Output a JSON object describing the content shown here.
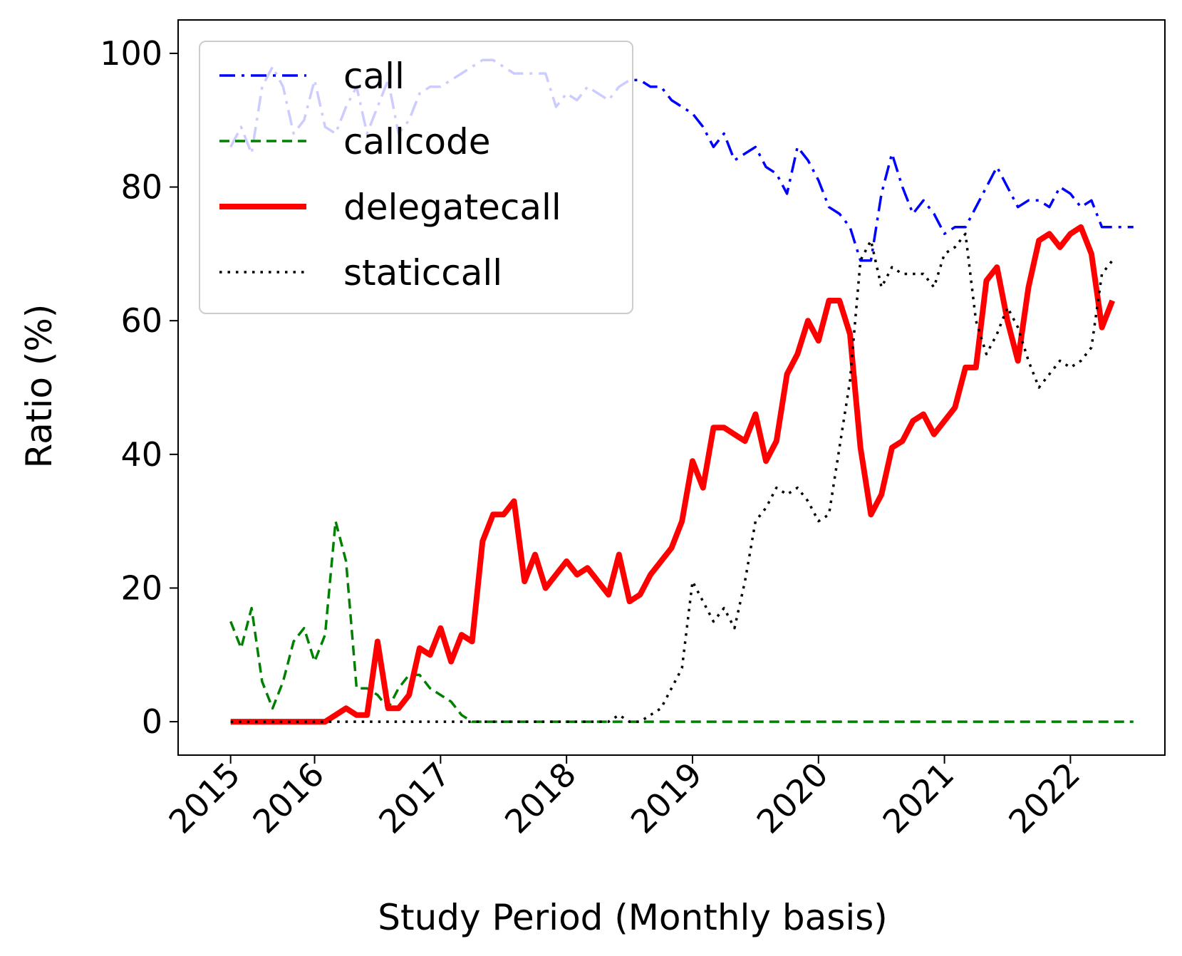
{
  "chart_data": {
    "type": "line",
    "title": "",
    "xlabel": "Study Period (Monthly basis)",
    "ylabel": "Ratio (%)",
    "xlim": [
      "2014-12",
      "2022-10"
    ],
    "ylim": [
      -5,
      105
    ],
    "xticks": [
      {
        "date": "2015-05",
        "label": "2015"
      },
      {
        "date": "2016-01",
        "label": "2016"
      },
      {
        "date": "2017-01",
        "label": "2017"
      },
      {
        "date": "2018-01",
        "label": "2018"
      },
      {
        "date": "2019-01",
        "label": "2019"
      },
      {
        "date": "2020-01",
        "label": "2020"
      },
      {
        "date": "2021-01",
        "label": "2021"
      },
      {
        "date": "2022-01",
        "label": "2022"
      }
    ],
    "yticks": [
      0,
      20,
      40,
      60,
      80,
      100
    ],
    "grid": false,
    "legend_position": "top-left",
    "series": [
      {
        "name": "call",
        "color": "#0000ff",
        "style": "dashdot",
        "points": [
          [
            "2015-05",
            86
          ],
          [
            "2015-06",
            89
          ],
          [
            "2015-07",
            85
          ],
          [
            "2015-08",
            95
          ],
          [
            "2015-09",
            98
          ],
          [
            "2015-10",
            95
          ],
          [
            "2015-11",
            88
          ],
          [
            "2015-12",
            90
          ],
          [
            "2016-01",
            96
          ],
          [
            "2016-02",
            89
          ],
          [
            "2016-03",
            88
          ],
          [
            "2016-04",
            92
          ],
          [
            "2016-05",
            95
          ],
          [
            "2016-06",
            88
          ],
          [
            "2016-07",
            92
          ],
          [
            "2016-08",
            96
          ],
          [
            "2016-09",
            88
          ],
          [
            "2016-10",
            90
          ],
          [
            "2016-11",
            94
          ],
          [
            "2016-12",
            95
          ],
          [
            "2017-01",
            95
          ],
          [
            "2017-02",
            96
          ],
          [
            "2017-03",
            97
          ],
          [
            "2017-04",
            98
          ],
          [
            "2017-05",
            99
          ],
          [
            "2017-06",
            99
          ],
          [
            "2017-07",
            98
          ],
          [
            "2017-08",
            97
          ],
          [
            "2017-09",
            97
          ],
          [
            "2017-10",
            97
          ],
          [
            "2017-11",
            97
          ],
          [
            "2017-12",
            92
          ],
          [
            "2018-01",
            94
          ],
          [
            "2018-02",
            93
          ],
          [
            "2018-03",
            95
          ],
          [
            "2018-04",
            94
          ],
          [
            "2018-05",
            93
          ],
          [
            "2018-06",
            95
          ],
          [
            "2018-07",
            96
          ],
          [
            "2018-08",
            96
          ],
          [
            "2018-09",
            95
          ],
          [
            "2018-10",
            95
          ],
          [
            "2018-11",
            93
          ],
          [
            "2018-12",
            92
          ],
          [
            "2019-01",
            91
          ],
          [
            "2019-02",
            89
          ],
          [
            "2019-03",
            86
          ],
          [
            "2019-04",
            88
          ],
          [
            "2019-05",
            84
          ],
          [
            "2019-06",
            85
          ],
          [
            "2019-07",
            86
          ],
          [
            "2019-08",
            83
          ],
          [
            "2019-09",
            82
          ],
          [
            "2019-10",
            79
          ],
          [
            "2019-11",
            86
          ],
          [
            "2019-12",
            84
          ],
          [
            "2020-01",
            81
          ],
          [
            "2020-02",
            77
          ],
          [
            "2020-03",
            76
          ],
          [
            "2020-04",
            74
          ],
          [
            "2020-05",
            69
          ],
          [
            "2020-06",
            69
          ],
          [
            "2020-07",
            79
          ],
          [
            "2020-08",
            85
          ],
          [
            "2020-09",
            80
          ],
          [
            "2020-10",
            76
          ],
          [
            "2020-11",
            78
          ],
          [
            "2020-12",
            76
          ],
          [
            "2021-01",
            73
          ],
          [
            "2021-02",
            74
          ],
          [
            "2021-03",
            74
          ],
          [
            "2021-04",
            77
          ],
          [
            "2021-05",
            80
          ],
          [
            "2021-06",
            83
          ],
          [
            "2021-07",
            80
          ],
          [
            "2021-08",
            77
          ],
          [
            "2021-09",
            78
          ],
          [
            "2021-10",
            78
          ],
          [
            "2021-11",
            77
          ],
          [
            "2021-12",
            80
          ],
          [
            "2022-01",
            79
          ],
          [
            "2022-02",
            77
          ],
          [
            "2022-03",
            78
          ],
          [
            "2022-04",
            74
          ],
          [
            "2022-05",
            74
          ],
          [
            "2022-06",
            74
          ],
          [
            "2022-07",
            74
          ]
        ]
      },
      {
        "name": "callcode",
        "color": "#008000",
        "style": "dashed",
        "points": [
          [
            "2015-05",
            15
          ],
          [
            "2015-06",
            11
          ],
          [
            "2015-07",
            17
          ],
          [
            "2015-08",
            6
          ],
          [
            "2015-09",
            2
          ],
          [
            "2015-10",
            6
          ],
          [
            "2015-11",
            12
          ],
          [
            "2015-12",
            14
          ],
          [
            "2016-01",
            9
          ],
          [
            "2016-02",
            13
          ],
          [
            "2016-03",
            30
          ],
          [
            "2016-04",
            24
          ],
          [
            "2016-05",
            5
          ],
          [
            "2016-06",
            5
          ],
          [
            "2016-07",
            4
          ],
          [
            "2016-08",
            2
          ],
          [
            "2016-09",
            5
          ],
          [
            "2016-10",
            7
          ],
          [
            "2016-11",
            7
          ],
          [
            "2016-12",
            5
          ],
          [
            "2017-01",
            4
          ],
          [
            "2017-02",
            3
          ],
          [
            "2017-03",
            1
          ],
          [
            "2017-04",
            0
          ],
          [
            "2017-05",
            0
          ],
          [
            "2017-06",
            0
          ],
          [
            "2017-07",
            0
          ],
          [
            "2017-08",
            0
          ],
          [
            "2017-09",
            0
          ],
          [
            "2018-01",
            0
          ],
          [
            "2019-01",
            0
          ],
          [
            "2020-01",
            0
          ],
          [
            "2021-01",
            0
          ],
          [
            "2022-01",
            0
          ],
          [
            "2022-07",
            0
          ]
        ]
      },
      {
        "name": "delegatecall",
        "color": "#ff0000",
        "style": "solid",
        "points": [
          [
            "2015-05",
            0
          ],
          [
            "2015-06",
            0
          ],
          [
            "2015-07",
            0
          ],
          [
            "2015-08",
            0
          ],
          [
            "2015-09",
            0
          ],
          [
            "2015-10",
            0
          ],
          [
            "2015-11",
            0
          ],
          [
            "2015-12",
            0
          ],
          [
            "2016-01",
            0
          ],
          [
            "2016-02",
            0
          ],
          [
            "2016-03",
            1
          ],
          [
            "2016-04",
            2
          ],
          [
            "2016-05",
            1
          ],
          [
            "2016-06",
            1
          ],
          [
            "2016-07",
            12
          ],
          [
            "2016-08",
            2
          ],
          [
            "2016-09",
            2
          ],
          [
            "2016-10",
            4
          ],
          [
            "2016-11",
            11
          ],
          [
            "2016-12",
            10
          ],
          [
            "2017-01",
            14
          ],
          [
            "2017-02",
            9
          ],
          [
            "2017-03",
            13
          ],
          [
            "2017-04",
            12
          ],
          [
            "2017-05",
            27
          ],
          [
            "2017-06",
            31
          ],
          [
            "2017-07",
            31
          ],
          [
            "2017-08",
            33
          ],
          [
            "2017-09",
            21
          ],
          [
            "2017-10",
            25
          ],
          [
            "2017-11",
            20
          ],
          [
            "2017-12",
            22
          ],
          [
            "2018-01",
            24
          ],
          [
            "2018-02",
            22
          ],
          [
            "2018-03",
            23
          ],
          [
            "2018-04",
            21
          ],
          [
            "2018-05",
            19
          ],
          [
            "2018-06",
            25
          ],
          [
            "2018-07",
            18
          ],
          [
            "2018-08",
            19
          ],
          [
            "2018-09",
            22
          ],
          [
            "2018-10",
            24
          ],
          [
            "2018-11",
            26
          ],
          [
            "2018-12",
            30
          ],
          [
            "2019-01",
            39
          ],
          [
            "2019-02",
            35
          ],
          [
            "2019-03",
            44
          ],
          [
            "2019-04",
            44
          ],
          [
            "2019-05",
            43
          ],
          [
            "2019-06",
            42
          ],
          [
            "2019-07",
            46
          ],
          [
            "2019-08",
            39
          ],
          [
            "2019-09",
            42
          ],
          [
            "2019-10",
            52
          ],
          [
            "2019-11",
            55
          ],
          [
            "2019-12",
            60
          ],
          [
            "2020-01",
            57
          ],
          [
            "2020-02",
            63
          ],
          [
            "2020-03",
            63
          ],
          [
            "2020-04",
            58
          ],
          [
            "2020-05",
            41
          ],
          [
            "2020-06",
            31
          ],
          [
            "2020-07",
            34
          ],
          [
            "2020-08",
            41
          ],
          [
            "2020-09",
            42
          ],
          [
            "2020-10",
            45
          ],
          [
            "2020-11",
            46
          ],
          [
            "2020-12",
            43
          ],
          [
            "2021-01",
            45
          ],
          [
            "2021-02",
            47
          ],
          [
            "2021-03",
            53
          ],
          [
            "2021-04",
            53
          ],
          [
            "2021-05",
            66
          ],
          [
            "2021-06",
            68
          ],
          [
            "2021-07",
            60
          ],
          [
            "2021-08",
            54
          ],
          [
            "2021-09",
            65
          ],
          [
            "2021-10",
            72
          ],
          [
            "2021-11",
            73
          ],
          [
            "2021-12",
            71
          ],
          [
            "2022-01",
            73
          ],
          [
            "2022-02",
            74
          ],
          [
            "2022-03",
            70
          ],
          [
            "2022-04",
            59
          ],
          [
            "2022-05",
            63
          ]
        ]
      },
      {
        "name": "staticcall",
        "color": "#000000",
        "style": "dotted",
        "points": [
          [
            "2015-05",
            0
          ],
          [
            "2016-01",
            0
          ],
          [
            "2017-01",
            0
          ],
          [
            "2018-01",
            0
          ],
          [
            "2018-05",
            0
          ],
          [
            "2018-06",
            1
          ],
          [
            "2018-07",
            0
          ],
          [
            "2018-08",
            0
          ],
          [
            "2018-09",
            1
          ],
          [
            "2018-10",
            2
          ],
          [
            "2018-11",
            5
          ],
          [
            "2018-12",
            8
          ],
          [
            "2019-01",
            21
          ],
          [
            "2019-02",
            18
          ],
          [
            "2019-03",
            15
          ],
          [
            "2019-04",
            17
          ],
          [
            "2019-05",
            14
          ],
          [
            "2019-06",
            21
          ],
          [
            "2019-07",
            30
          ],
          [
            "2019-08",
            32
          ],
          [
            "2019-09",
            35
          ],
          [
            "2019-10",
            34
          ],
          [
            "2019-11",
            35
          ],
          [
            "2019-12",
            33
          ],
          [
            "2020-01",
            30
          ],
          [
            "2020-02",
            31
          ],
          [
            "2020-03",
            41
          ],
          [
            "2020-04",
            51
          ],
          [
            "2020-05",
            69
          ],
          [
            "2020-06",
            72
          ],
          [
            "2020-07",
            65
          ],
          [
            "2020-08",
            68
          ],
          [
            "2020-09",
            67
          ],
          [
            "2020-10",
            67
          ],
          [
            "2020-11",
            67
          ],
          [
            "2020-12",
            65
          ],
          [
            "2021-01",
            70
          ],
          [
            "2021-02",
            71
          ],
          [
            "2021-03",
            73
          ],
          [
            "2021-04",
            60
          ],
          [
            "2021-05",
            55
          ],
          [
            "2021-06",
            58
          ],
          [
            "2021-07",
            62
          ],
          [
            "2021-08",
            59
          ],
          [
            "2021-09",
            54
          ],
          [
            "2021-10",
            50
          ],
          [
            "2021-11",
            52
          ],
          [
            "2021-12",
            54
          ],
          [
            "2022-01",
            53
          ],
          [
            "2022-02",
            54
          ],
          [
            "2022-03",
            56
          ],
          [
            "2022-04",
            67
          ],
          [
            "2022-05",
            69
          ]
        ]
      }
    ]
  }
}
